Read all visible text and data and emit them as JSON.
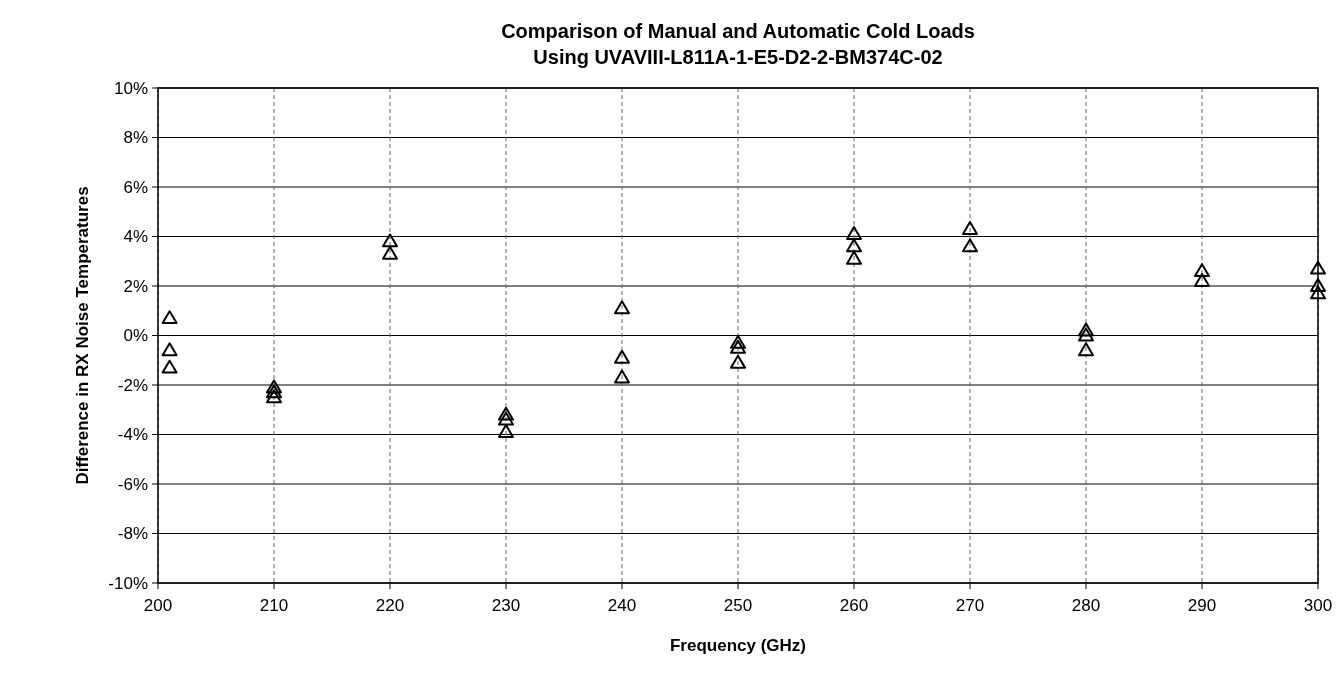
{
  "chart_data": {
    "type": "scatter",
    "title": "Comparison of Manual and Automatic Cold Loads",
    "subtitle": "Using UVAVIII-L811A-1-E5-D2-2-BM374C-02",
    "xlabel": "Frequency (GHz)",
    "ylabel": "Difference in RX Noise Temperatures",
    "series": [
      {
        "color": "#000000",
        "x": [
          201,
          201,
          201,
          210,
          210,
          210,
          220,
          220,
          230,
          230,
          230,
          240,
          240,
          240,
          250,
          250,
          250,
          260,
          260,
          260,
          270,
          270,
          280,
          280,
          280,
          290,
          290,
          300,
          300,
          300
        ],
        "values": [
          0.7,
          -0.6,
          -1.3,
          -2.1,
          -2.3,
          -2.5,
          3.8,
          3.3,
          -3.2,
          -3.4,
          -3.9,
          1.1,
          -0.9,
          -1.7,
          -0.3,
          -0.5,
          -1.1,
          4.1,
          3.6,
          3.1,
          4.3,
          3.6,
          0.2,
          0.0,
          -0.6,
          2.6,
          2.2,
          2.7,
          2.0,
          1.7
        ]
      }
    ],
    "xlim": [
      200,
      300
    ],
    "xticks": [
      200,
      210,
      220,
      230,
      240,
      250,
      260,
      270,
      280,
      290,
      300
    ],
    "ylim": [
      -10,
      10
    ],
    "yticks": [
      {
        "value": -10,
        "label": "-10%"
      },
      {
        "value": -8,
        "label": "-8%"
      },
      {
        "value": -6,
        "label": "-6%"
      },
      {
        "value": -4,
        "label": "-4%"
      },
      {
        "value": -2,
        "label": "-2%"
      },
      {
        "value": 0,
        "label": "0%"
      },
      {
        "value": 2,
        "label": "2%"
      },
      {
        "value": 4,
        "label": "4%"
      },
      {
        "value": 6,
        "label": "6%"
      },
      {
        "value": 8,
        "label": "8%"
      },
      {
        "value": 10,
        "label": "10%"
      }
    ],
    "grid": true,
    "marker": "triangle"
  }
}
